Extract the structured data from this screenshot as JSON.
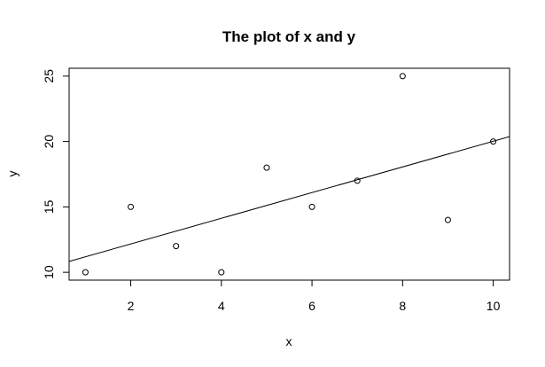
{
  "chart_data": {
    "type": "scatter",
    "title": "The plot of x and y",
    "xlabel": "x",
    "ylabel": "y",
    "xlim": [
      0.64,
      10.36
    ],
    "ylim": [
      9.4,
      25.6
    ],
    "x_ticks": [
      2,
      4,
      6,
      8,
      10
    ],
    "y_ticks": [
      10,
      15,
      20,
      25
    ],
    "grid": false,
    "points": [
      {
        "x": 1,
        "y": 10
      },
      {
        "x": 2,
        "y": 15
      },
      {
        "x": 3,
        "y": 12
      },
      {
        "x": 4,
        "y": 10
      },
      {
        "x": 5,
        "y": 18
      },
      {
        "x": 6,
        "y": 15
      },
      {
        "x": 7,
        "y": 17
      },
      {
        "x": 8,
        "y": 25
      },
      {
        "x": 9,
        "y": 14
      },
      {
        "x": 10,
        "y": 20
      }
    ],
    "fit_line": {
      "intercept": 10.2,
      "slope": 0.982
    }
  }
}
